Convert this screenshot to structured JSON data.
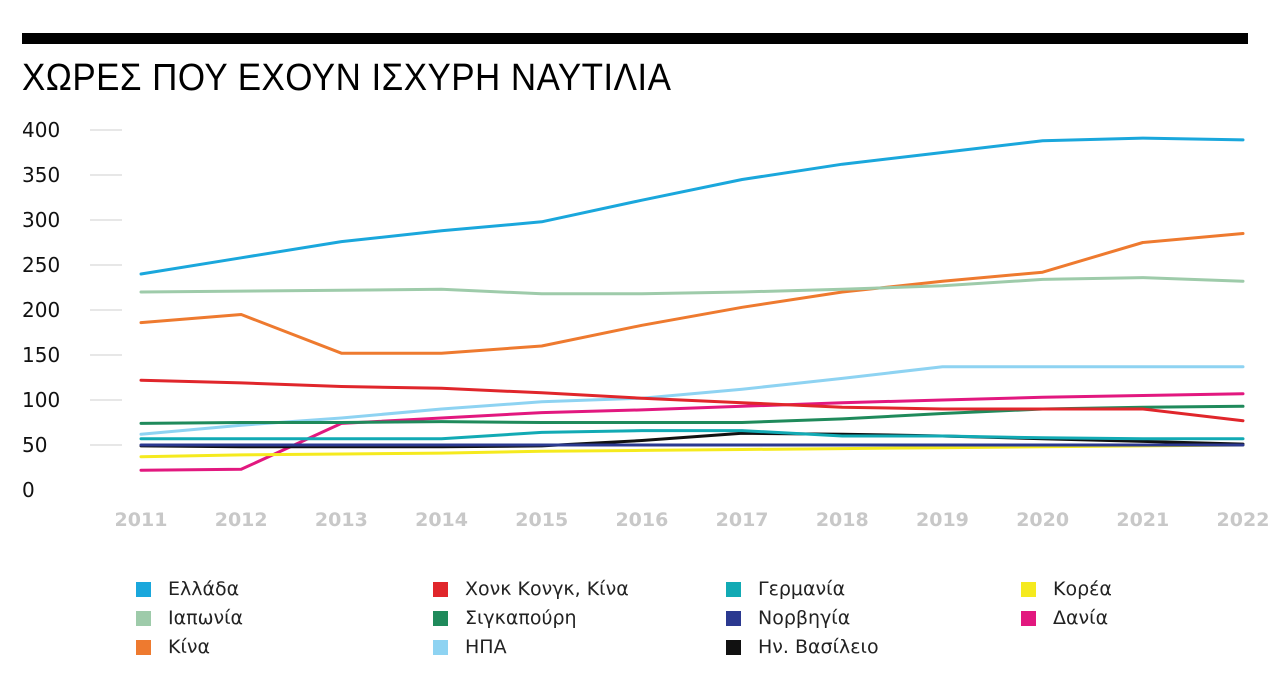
{
  "title": "ΧΩΡΕΣ ΠΟΥ ΕΧΟΥΝ ΙΣΧΥΡΗ ΝΑΥΤΙΛΙΑ",
  "chart_data": {
    "type": "line",
    "title": "ΧΩΡΕΣ ΠΟΥ ΕΧΟΥΝ ΙΣΧΥΡΗ ΝΑΥΤΙΛΙΑ",
    "xlabel": "",
    "ylabel": "",
    "x": [
      "2011",
      "2012",
      "2013",
      "2014",
      "2015",
      "2016",
      "2017",
      "2018",
      "2019",
      "2020",
      "2021",
      "2022"
    ],
    "yticks": [
      0,
      50,
      100,
      150,
      200,
      250,
      300,
      350,
      400
    ],
    "ylim": [
      0,
      400
    ],
    "grid": "horizontal",
    "legend_position": "bottom",
    "series": [
      {
        "name": "Ελλάδα",
        "color": "#1aa7dc",
        "values": [
          240,
          258,
          276,
          288,
          298,
          322,
          345,
          362,
          375,
          388,
          391,
          389
        ]
      },
      {
        "name": "Ιαπωνία",
        "color": "#9ecbaa",
        "values": [
          220,
          221,
          222,
          223,
          218,
          218,
          220,
          223,
          227,
          234,
          236,
          232
        ]
      },
      {
        "name": "Κίνα",
        "color": "#ee7a2f",
        "values": [
          186,
          195,
          152,
          152,
          160,
          183,
          203,
          220,
          232,
          242,
          275,
          285
        ]
      },
      {
        "name": "Χονκ Κονγκ, Κίνα",
        "color": "#e0262b",
        "values": [
          122,
          119,
          115,
          113,
          108,
          102,
          97,
          92,
          90,
          90,
          90,
          77
        ]
      },
      {
        "name": "Σιγκαπούρη",
        "color": "#1f8a5b",
        "values": [
          74,
          75,
          75,
          76,
          75,
          75,
          75,
          79,
          85,
          90,
          92,
          93
        ]
      },
      {
        "name": "ΗΠΑ",
        "color": "#8ed3f2",
        "values": [
          62,
          72,
          80,
          90,
          98,
          102,
          112,
          124,
          137,
          137,
          137,
          137
        ]
      },
      {
        "name": "Γερμανία",
        "color": "#12aab4",
        "values": [
          57,
          57,
          57,
          57,
          64,
          66,
          66,
          60,
          60,
          58,
          57,
          57
        ]
      },
      {
        "name": "Νορβηγία",
        "color": "#2b3990",
        "values": [
          50,
          50,
          50,
          50,
          50,
          50,
          50,
          50,
          50,
          50,
          50,
          50
        ]
      },
      {
        "name": "Ην. Βασίλειο",
        "color": "#111111",
        "values": [
          49,
          48,
          48,
          48,
          49,
          55,
          63,
          62,
          60,
          57,
          54,
          51
        ]
      },
      {
        "name": "Κορέα",
        "color": "#f5ea1e",
        "values": [
          37,
          39,
          40,
          41,
          43,
          44,
          45,
          46,
          47,
          48,
          49,
          50
        ]
      },
      {
        "name": "Δανία",
        "color": "#e2187f",
        "values": [
          22,
          23,
          74,
          80,
          86,
          89,
          93,
          97,
          100,
          103,
          105,
          107
        ]
      }
    ]
  },
  "legend": [
    {
      "label": "Ελλάδα",
      "color": "#1aa7dc"
    },
    {
      "label": "Ιαπωνία",
      "color": "#9ecbaa"
    },
    {
      "label": "Κίνα",
      "color": "#ee7a2f"
    },
    {
      "label": "Χονκ Κονγκ, Κίνα",
      "color": "#e0262b"
    },
    {
      "label": "Σιγκαπούρη",
      "color": "#1f8a5b"
    },
    {
      "label": "ΗΠΑ",
      "color": "#8ed3f2"
    },
    {
      "label": "Γερμανία",
      "color": "#12aab4"
    },
    {
      "label": "Νορβηγία",
      "color": "#2b3990"
    },
    {
      "label": "Ην. Βασίλειο",
      "color": "#111111"
    },
    {
      "label": "Κορέα",
      "color": "#f5ea1e"
    },
    {
      "label": "Δανία",
      "color": "#e2187f"
    }
  ]
}
